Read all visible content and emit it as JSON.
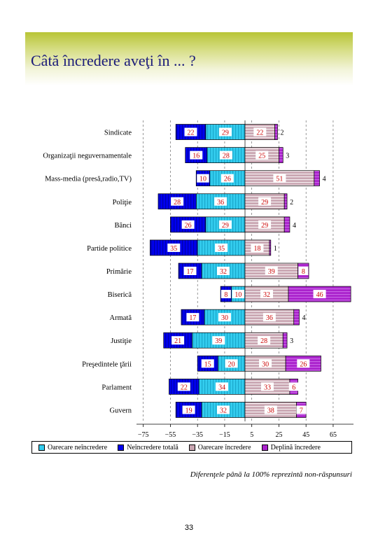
{
  "title": "Câtă încredere aveţi în ... ?",
  "footnote": "Diferenţele până la 100% reprezintă non-răspunsuri",
  "page_number": "33",
  "colors": {
    "oarecare_neincredere": "#33ccee",
    "neincredere_totala": "#0000ee",
    "oarecare_incredere": "#c9a6b2",
    "deplina_incredere": "#aa22cc"
  },
  "legend": [
    {
      "key": "oarecare_neincredere",
      "label": "Oarecare neîncredere",
      "color": "#33ccee"
    },
    {
      "key": "neincredere_totala",
      "label": "Neîncredere totală",
      "color": "#0000ee"
    },
    {
      "key": "oarecare_incredere",
      "label": "Oarecare încredere",
      "color": "#c9a6b2"
    },
    {
      "key": "deplina_incredere",
      "label": "Deplină încredere",
      "color": "#aa22cc"
    }
  ],
  "chart_data": {
    "type": "bar",
    "orientation": "horizontal-diverging",
    "x_axis": {
      "min": -80,
      "max": 80,
      "ticks": [
        -75,
        -55,
        -35,
        -15,
        5,
        25,
        45,
        65
      ],
      "grid": "dashed-vertical"
    },
    "categories": [
      "Sindicate",
      "Organizaţii neguvernamentale",
      "Mass-media (presă,radio,TV)",
      "Poliţie",
      "Bănci",
      "Partide politice",
      "Primărie",
      "Biserică",
      "Armată",
      "Justiţie",
      "Preşedintele ţării",
      "Parlament",
      "Guvern"
    ],
    "series": [
      {
        "key": "oarecare_neincredere",
        "name": "Oarecare neîncredere",
        "values": [
          29,
          28,
          26,
          36,
          29,
          35,
          32,
          10,
          30,
          39,
          20,
          34,
          32
        ]
      },
      {
        "key": "neincredere_totala",
        "name": "Neîncredere totală",
        "values": [
          22,
          16,
          10,
          28,
          26,
          35,
          17,
          8,
          17,
          21,
          15,
          22,
          19
        ]
      },
      {
        "key": "oarecare_incredere",
        "name": "Oarecare încredere",
        "values": [
          22,
          25,
          51,
          29,
          29,
          18,
          39,
          32,
          36,
          28,
          30,
          33,
          38
        ]
      },
      {
        "key": "deplina_incredere",
        "name": "Deplină încredere",
        "values": [
          2,
          3,
          4,
          2,
          4,
          1,
          8,
          46,
          4,
          3,
          26,
          6,
          7
        ]
      }
    ],
    "label_outside_threshold": 6
  }
}
